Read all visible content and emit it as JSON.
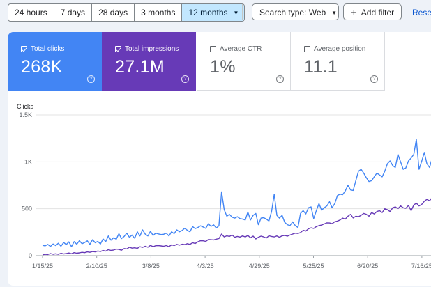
{
  "toolbar": {
    "ranges": [
      "24 hours",
      "7 days",
      "28 days",
      "3 months",
      "12 months"
    ],
    "active_range": "12 months",
    "search_type": "Search type: Web",
    "add_filter": "Add filter",
    "reset": "Reset"
  },
  "metrics": {
    "clicks": {
      "label": "Total clicks",
      "value": "268K",
      "checked": true
    },
    "impressions": {
      "label": "Total impressions",
      "value": "27.1M",
      "checked": true
    },
    "ctr": {
      "label": "Average CTR",
      "value": "1%",
      "checked": false
    },
    "position": {
      "label": "Average position",
      "value": "11.1",
      "checked": false
    }
  },
  "colors": {
    "clicks": "#4285f4",
    "impressions": "#673ab7"
  },
  "chart_data": {
    "type": "line",
    "ylabel": "Clicks",
    "ylim": [
      0,
      1500
    ],
    "yticks": [
      0,
      500,
      1000,
      1500
    ],
    "ytick_labels": [
      "0",
      "500",
      "1K",
      "1.5K"
    ],
    "xtick_labels": [
      "1/15/25",
      "2/10/25",
      "3/8/25",
      "4/3/25",
      "4/29/25",
      "5/25/25",
      "6/20/25",
      "7/16/25"
    ],
    "grid": true,
    "series": [
      {
        "key": "clicks",
        "values": [
          110,
          105,
          120,
          98,
          125,
          108,
          132,
          100,
          140,
          118,
          148,
          95,
          150,
          122,
          160,
          128,
          140,
          158,
          120,
          170,
          138,
          152,
          125,
          178,
          150,
          210,
          165,
          190,
          175,
          235,
          182,
          205,
          240,
          195,
          220,
          185,
          255,
          210,
          275,
          230,
          210,
          260,
          215,
          240,
          232,
          225,
          228,
          240,
          210,
          255,
          235,
          275,
          255,
          268,
          292,
          270,
          255,
          310,
          288,
          300,
          318,
          305,
          290,
          340,
          312,
          328,
          295,
          318,
          680,
          490,
          420,
          440,
          410,
          400,
          415,
          395,
          390,
          380,
          465,
          380,
          430,
          450,
          330,
          400,
          405,
          390,
          370,
          470,
          655,
          430,
          400,
          430,
          355,
          330,
          320,
          360,
          320,
          300,
          450,
          480,
          445,
          510,
          520,
          395,
          480,
          555,
          485,
          510,
          530,
          575,
          510,
          555,
          640,
          655,
          650,
          690,
          750,
          700,
          695,
          800,
          900,
          920,
          880,
          830,
          790,
          800,
          840,
          880,
          860,
          840,
          900,
          980,
          1010,
          960,
          940,
          1080,
          1000,
          920,
          935,
          1010,
          1040,
          1080,
          1240,
          920,
          1005,
          1100,
          980,
          940,
          1040,
          1000,
          960,
          940
        ]
      },
      {
        "key": "impressions",
        "values": [
          10,
          15,
          12,
          22,
          15,
          20,
          14,
          25,
          18,
          22,
          28,
          20,
          32,
          26,
          30,
          36,
          32,
          40,
          36,
          44,
          40,
          50,
          44,
          56,
          48,
          64,
          56,
          60,
          70,
          66,
          58,
          76,
          72,
          90,
          80,
          84,
          78,
          95,
          88,
          100,
          90,
          110,
          96,
          106,
          108,
          104,
          100,
          108,
          96,
          115,
          108,
          120,
          112,
          122,
          118,
          128,
          120,
          138,
          130,
          148,
          160,
          158,
          152,
          172,
          170,
          168,
          176,
          182,
          230,
          200,
          212,
          205,
          220,
          196,
          205,
          198,
          210,
          200,
          215,
          190,
          208,
          178,
          196,
          208,
          200,
          188,
          212,
          205,
          200,
          210,
          196,
          212,
          216,
          208,
          220,
          230,
          240,
          236,
          246,
          270,
          262,
          286,
          296,
          290,
          310,
          320,
          326,
          338,
          350,
          348,
          340,
          362,
          368,
          380,
          400,
          390,
          420,
          440,
          402,
          420,
          415,
          430,
          450,
          440,
          420,
          460,
          445,
          470,
          480,
          460,
          500,
          490,
          470,
          510,
          520,
          500,
          530,
          510,
          505,
          535,
          480,
          540,
          560,
          530,
          545,
          580,
          600,
          585,
          620,
          560,
          470,
          590
        ]
      }
    ]
  }
}
